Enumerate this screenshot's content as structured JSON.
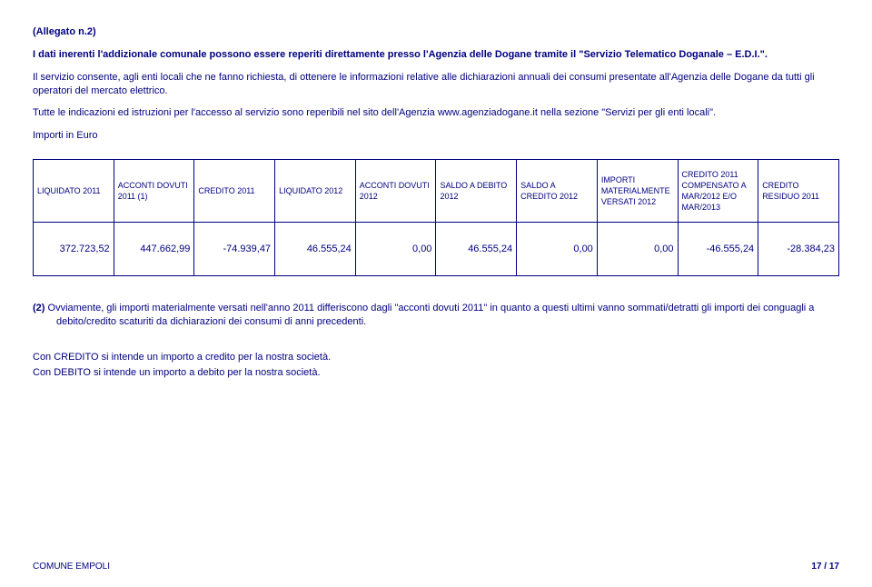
{
  "header": {
    "allegato": "(Allegato n.2)"
  },
  "intro": {
    "p1": "I dati inerenti l'addizionale comunale possono essere reperiti direttamente presso l'Agenzia delle Dogane tramite il \"Servizio Telematico Doganale – E.D.I.\".",
    "p2": "Il servizio consente, agli enti locali che ne fanno richiesta, di ottenere le informazioni relative alle dichiarazioni annuali dei consumi presentate all'Agenzia delle Dogane da tutti gli operatori del mercato elettrico.",
    "p3": "Tutte le indicazioni ed istruzioni per l'accesso al servizio sono reperibili nel sito dell'Agenzia www.agenziadogane.it nella sezione \"Servizi per gli enti locali\".",
    "p4": "Importi in Euro"
  },
  "table": {
    "columns": [
      "LIQUIDATO 2011",
      "ACCONTI DOVUTI 2011 (1)",
      "CREDITO 2011",
      "LIQUIDATO 2012",
      "ACCONTI DOVUTI 2012",
      "SALDO A DEBITO 2012",
      "SALDO A CREDITO 2012",
      "IMPORTI MATERIALMENTE VERSATI 2012",
      "CREDITO 2011 COMPENSATO A MAR/2012 E/O MAR/2013",
      "CREDITO RESIDUO 2011"
    ],
    "row": [
      "372.723,52",
      "447.662,99",
      "-74.939,47",
      "46.555,24",
      "0,00",
      "46.555,24",
      "0,00",
      "0,00",
      "-46.555,24",
      "-28.384,23"
    ]
  },
  "notes": {
    "n2_label": "(2)",
    "n2_text": " Ovviamente, gli importi materialmente versati nell'anno 2011 differiscono dagli \"acconti dovuti 2011\" in quanto a questi ultimi vanno sommati/detratti gli importi dei conguagli a debito/credito scaturiti da dichiarazioni dei consumi di anni precedenti.",
    "credito": "Con CREDITO si intende un importo a credito per la nostra società.",
    "debito": "Con DEBITO si intende un importo a debito per la nostra società."
  },
  "footer": {
    "left": "COMUNE EMPOLI",
    "page": "17 / 17"
  }
}
